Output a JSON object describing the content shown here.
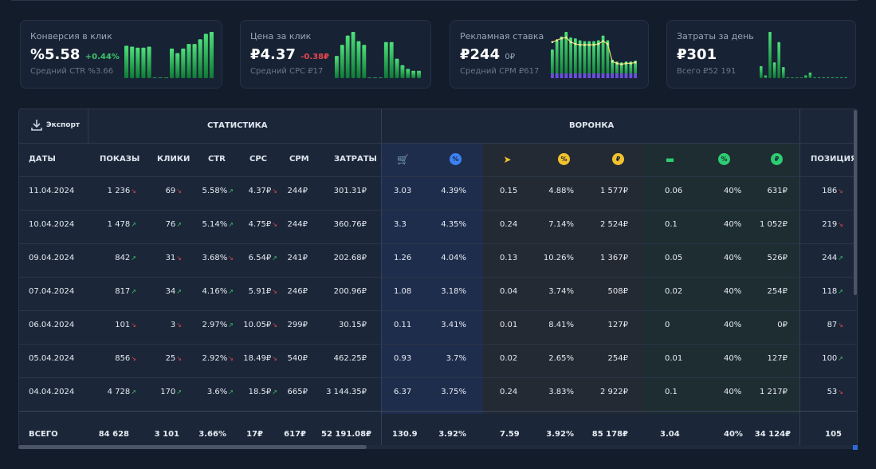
{
  "cards": [
    {
      "label": "Конверсия в клик",
      "value": "%5.58",
      "change": "+0.44%",
      "change_dir": "up",
      "sub": "Средний CTR %3.66",
      "bars": [
        0.7,
        0.68,
        0.66,
        0.66,
        0.68,
        0,
        0,
        0,
        0.64,
        0.54,
        0.64,
        0.74,
        0.74,
        0.84,
        0.96,
        1.0
      ]
    },
    {
      "label": "Цена за клик",
      "value": "₽4.37",
      "change": "-0.38₽",
      "change_dir": "down",
      "sub": "Средний CPC ₽17",
      "bars": [
        0.48,
        0.72,
        0.92,
        1.0,
        0.8,
        0.72,
        0,
        0,
        0,
        0.78,
        0.78,
        0.42,
        0.28,
        0.2,
        0.16,
        0.16
      ]
    },
    {
      "label": "Рекламная ставка",
      "value": "₽244",
      "change": "0₽",
      "change_dir": "neutral",
      "sub": "Средний CPM ₽617",
      "bars": [
        0.62,
        0.82,
        0.9,
        1.0,
        0.88,
        0.86,
        0.82,
        0.8,
        0.8,
        0.8,
        0.82,
        0.92,
        0.82,
        0.4,
        0.36,
        0.34,
        0.36,
        0.36,
        0.38
      ],
      "line": [
        0.78,
        0.82,
        0.86,
        0.88,
        0.78,
        0.74,
        0.72,
        0.72,
        0.72,
        0.72,
        0.74,
        0.8,
        0.74,
        0.36,
        0.32,
        0.3,
        0.32,
        0.32,
        0.34
      ]
    },
    {
      "label": "Затраты за день",
      "value": "₽301",
      "change": "",
      "change_dir": "neutral",
      "sub": "Всего ₽52 191",
      "bars": [
        0.26,
        0.06,
        1.0,
        0.34,
        0.78,
        0.24,
        0,
        0,
        0,
        0,
        0.06,
        0.12,
        0.02,
        0.02,
        0.02,
        0.02,
        0.02,
        0.02,
        0.02,
        0.02
      ]
    }
  ],
  "export_label": "Экспорт",
  "group_stats": "СТАТИСТИКА",
  "group_funnel": "ВОРОНКА",
  "col_headers": {
    "dates": "ДАТЫ",
    "shows": "ПОКАЗЫ",
    "clicks": "КЛИКИ",
    "ctr": "CTR",
    "cpc": "CPC",
    "cpm": "CPM",
    "spend": "ЗАТРАТЫ",
    "position": "ПОЗИЦИЯ"
  },
  "funnel_icons": [
    {
      "name": "cart-icon",
      "color": "#3b82f6"
    },
    {
      "name": "percent-icon",
      "color": "#3b82f6"
    },
    {
      "name": "send-icon",
      "color": "#f2c12e"
    },
    {
      "name": "percent-icon",
      "color": "#f2c12e"
    },
    {
      "name": "ruble-coin-icon",
      "color": "#f2c12e"
    },
    {
      "name": "cash-icon",
      "color": "#2ecc71"
    },
    {
      "name": "percent-icon",
      "color": "#2ecc71"
    },
    {
      "name": "ruble-coin-icon",
      "color": "#2ecc71"
    }
  ],
  "rows": [
    {
      "date": "11.04.2024",
      "shows": "1 236",
      "shows_t": "down",
      "clicks": "69",
      "clicks_t": "down",
      "ctr": "5.58%",
      "ctr_t": "up",
      "cpc": "4.37₽",
      "cpc_t": "down",
      "cpm": "244₽",
      "spend": "301.31₽",
      "f": [
        "3.03",
        "4.39%",
        "0.15",
        "4.88%",
        "1 577₽",
        "0.06",
        "40%",
        "631₽"
      ],
      "pos": "186",
      "pos_t": "down"
    },
    {
      "date": "10.04.2024",
      "shows": "1 478",
      "shows_t": "up",
      "clicks": "76",
      "clicks_t": "up",
      "ctr": "5.14%",
      "ctr_t": "up",
      "cpc": "4.75₽",
      "cpc_t": "down",
      "cpm": "244₽",
      "spend": "360.76₽",
      "f": [
        "3.3",
        "4.35%",
        "0.24",
        "7.14%",
        "2 524₽",
        "0.1",
        "40%",
        "1 052₽"
      ],
      "pos": "219",
      "pos_t": "down"
    },
    {
      "date": "09.04.2024",
      "shows": "842",
      "shows_t": "up",
      "clicks": "31",
      "clicks_t": "down",
      "ctr": "3.68%",
      "ctr_t": "down",
      "cpc": "6.54₽",
      "cpc_t": "up",
      "cpm": "241₽",
      "spend": "202.68₽",
      "f": [
        "1.26",
        "4.04%",
        "0.13",
        "10.26%",
        "1 367₽",
        "0.05",
        "40%",
        "526₽"
      ],
      "pos": "244",
      "pos_t": "up"
    },
    {
      "date": "07.04.2024",
      "shows": "817",
      "shows_t": "up",
      "clicks": "34",
      "clicks_t": "up",
      "ctr": "4.16%",
      "ctr_t": "up",
      "cpc": "5.91₽",
      "cpc_t": "down",
      "cpm": "246₽",
      "spend": "200.96₽",
      "f": [
        "1.08",
        "3.18%",
        "0.04",
        "3.74%",
        "508₽",
        "0.02",
        "40%",
        "254₽"
      ],
      "pos": "118",
      "pos_t": "up"
    },
    {
      "date": "06.04.2024",
      "shows": "101",
      "shows_t": "down",
      "clicks": "3",
      "clicks_t": "down",
      "ctr": "2.97%",
      "ctr_t": "up",
      "cpc": "10.05₽",
      "cpc_t": "down",
      "cpm": "299₽",
      "spend": "30.15₽",
      "f": [
        "0.11",
        "3.41%",
        "0.01",
        "8.41%",
        "127₽",
        "0",
        "40%",
        "0₽"
      ],
      "pos": "87",
      "pos_t": "down"
    },
    {
      "date": "05.04.2024",
      "shows": "856",
      "shows_t": "down",
      "clicks": "25",
      "clicks_t": "down",
      "ctr": "2.92%",
      "ctr_t": "down",
      "cpc": "18.49₽",
      "cpc_t": "down",
      "cpm": "540₽",
      "spend": "462.25₽",
      "f": [
        "0.93",
        "3.7%",
        "0.02",
        "2.65%",
        "254₽",
        "0.01",
        "40%",
        "127₽"
      ],
      "pos": "100",
      "pos_t": "up"
    },
    {
      "date": "04.04.2024",
      "shows": "4 728",
      "shows_t": "up",
      "clicks": "170",
      "clicks_t": "up",
      "ctr": "3.6%",
      "ctr_t": "up",
      "cpc": "18.5₽",
      "cpc_t": "up",
      "cpm": "665₽",
      "spend": "3 144.35₽",
      "f": [
        "6.37",
        "3.75%",
        "0.24",
        "3.83%",
        "2 922₽",
        "0.1",
        "40%",
        "1 217₽"
      ],
      "pos": "53",
      "pos_t": "down"
    }
  ],
  "total": {
    "label": "ВСЕГО",
    "shows": "84 628",
    "clicks": "3 101",
    "ctr": "3.66%",
    "cpc": "17₽",
    "cpm": "617₽",
    "spend": "52 191.08₽",
    "f": [
      "130.9",
      "3.92%",
      "7.59",
      "3.92%",
      "85 178₽",
      "3.04",
      "40%",
      "34 124₽"
    ],
    "pos": "105"
  }
}
